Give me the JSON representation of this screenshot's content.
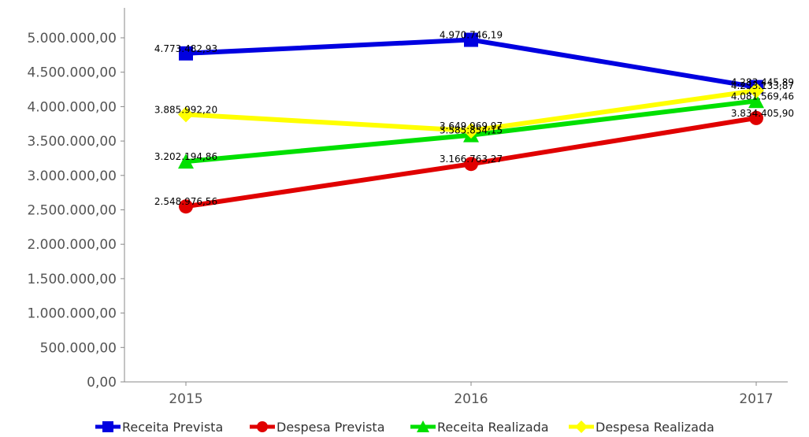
{
  "chart_data": {
    "type": "line",
    "categories": [
      "2015",
      "2016",
      "2017"
    ],
    "ylim": [
      0,
      5250000
    ],
    "yticks": [
      0,
      500000,
      1000000,
      1500000,
      2000000,
      2500000,
      3000000,
      3500000,
      4000000,
      4500000,
      5000000
    ],
    "ytick_labels": [
      "0,00",
      "500.000,00",
      "1.000.000,00",
      "1.500.000,00",
      "2.000.000,00",
      "2.500.000,00",
      "3.000.000,00",
      "3.500.000,00",
      "4.000.000,00",
      "4.500.000,00",
      "5.000.000,00"
    ],
    "grid": false,
    "legend_position": "bottom",
    "series": [
      {
        "name": "Receita Prevista",
        "color": "#0000e0",
        "marker": "square",
        "values": [
          4773482.93,
          4970746.19,
          4283445.89
        ],
        "labels": [
          "4.773.482,93",
          "4.970.746,19",
          "4.283.445,89"
        ]
      },
      {
        "name": "Despesa Prevista",
        "color": "#e00000",
        "marker": "circle",
        "values": [
          2548976.56,
          3166763.27,
          3834405.9
        ],
        "labels": [
          "2.548.976,56",
          "3.166.763,27",
          "3.834.405,90"
        ]
      },
      {
        "name": "Receita Realizada",
        "color": "#00e000",
        "marker": "triangle",
        "values": [
          3202194.86,
          3585854.15,
          4081569.46
        ],
        "labels": [
          "3.202.194,86",
          "3.585.854,15",
          "4.081.569,46"
        ]
      },
      {
        "name": "Despesa Realizada",
        "color": "#ffff00",
        "marker": "diamond",
        "values": [
          3885992.2,
          3649969.97,
          4233133.87
        ],
        "labels": [
          "3.885.992,20",
          "3.649.969,97",
          "4.233.133,87"
        ]
      }
    ]
  }
}
